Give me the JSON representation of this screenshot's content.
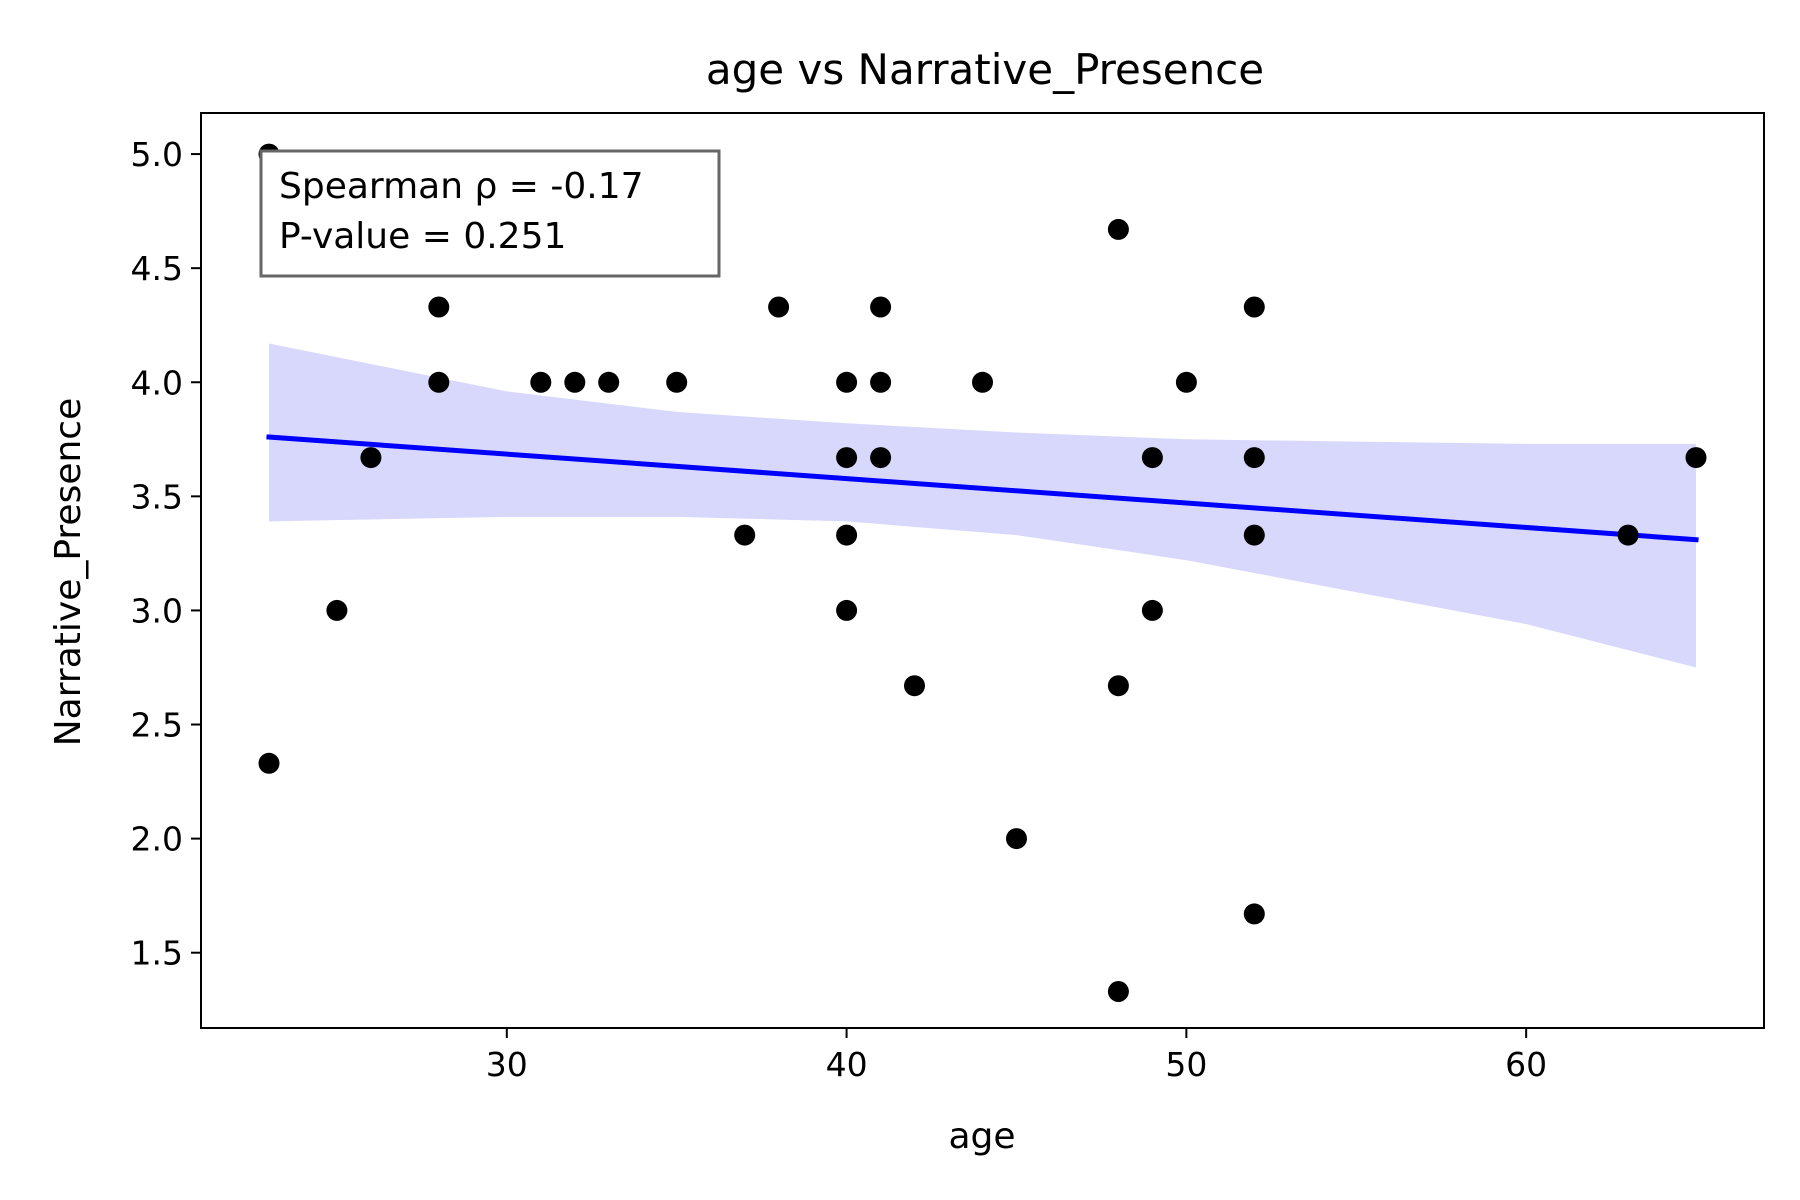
{
  "chart_data": {
    "type": "scatter",
    "title": "age vs Narrative_Presence",
    "xlabel": "age",
    "ylabel": "Narrative_Presence",
    "xlim": [
      21,
      67
    ],
    "ylim": [
      1.17,
      5.18
    ],
    "xticks": [
      30,
      40,
      50,
      60
    ],
    "yticks": [
      1.5,
      2.0,
      2.5,
      3.0,
      3.5,
      4.0,
      4.5,
      5.0
    ],
    "xtick_labels": [
      "30",
      "40",
      "50",
      "60"
    ],
    "ytick_labels": [
      "1.5",
      "2.0",
      "2.5",
      "3.0",
      "3.5",
      "4.0",
      "4.5",
      "5.0"
    ],
    "grid": false,
    "points": [
      {
        "x": 23,
        "y": 5.0
      },
      {
        "x": 23,
        "y": 2.33
      },
      {
        "x": 25,
        "y": 3.0
      },
      {
        "x": 26,
        "y": 3.67
      },
      {
        "x": 28,
        "y": 4.33
      },
      {
        "x": 28,
        "y": 4.0
      },
      {
        "x": 31,
        "y": 4.0
      },
      {
        "x": 32,
        "y": 4.0
      },
      {
        "x": 33,
        "y": 4.0
      },
      {
        "x": 35,
        "y": 4.0
      },
      {
        "x": 37,
        "y": 3.33
      },
      {
        "x": 38,
        "y": 4.33
      },
      {
        "x": 40,
        "y": 4.0
      },
      {
        "x": 40,
        "y": 3.67
      },
      {
        "x": 40,
        "y": 3.33
      },
      {
        "x": 40,
        "y": 3.0
      },
      {
        "x": 41,
        "y": 4.33
      },
      {
        "x": 41,
        "y": 4.0
      },
      {
        "x": 41,
        "y": 3.67
      },
      {
        "x": 42,
        "y": 2.67
      },
      {
        "x": 44,
        "y": 4.0
      },
      {
        "x": 45,
        "y": 2.0
      },
      {
        "x": 48,
        "y": 4.67
      },
      {
        "x": 48,
        "y": 2.67
      },
      {
        "x": 48,
        "y": 1.33
      },
      {
        "x": 49,
        "y": 3.67
      },
      {
        "x": 49,
        "y": 3.0
      },
      {
        "x": 50,
        "y": 4.0
      },
      {
        "x": 52,
        "y": 4.33
      },
      {
        "x": 52,
        "y": 3.67
      },
      {
        "x": 52,
        "y": 3.33
      },
      {
        "x": 52,
        "y": 1.67
      },
      {
        "x": 63,
        "y": 3.33
      },
      {
        "x": 65,
        "y": 3.67
      }
    ],
    "regression_line": {
      "x": [
        23,
        65
      ],
      "y": [
        3.76,
        3.31
      ]
    },
    "confidence_band": {
      "x": [
        23,
        30,
        35,
        40,
        45,
        50,
        55,
        60,
        65
      ],
      "upper": [
        4.17,
        3.96,
        3.87,
        3.82,
        3.78,
        3.75,
        3.74,
        3.73,
        3.73
      ],
      "lower": [
        3.39,
        3.41,
        3.41,
        3.39,
        3.33,
        3.22,
        3.08,
        2.94,
        2.75
      ]
    },
    "annotation": {
      "lines": [
        "Spearman ρ = -0.17",
        "P-value = 0.251"
      ]
    },
    "colors": {
      "points": "#000000",
      "line": "#0000ff",
      "band": "#d8d8fc",
      "annotation_border": "#666666"
    }
  }
}
